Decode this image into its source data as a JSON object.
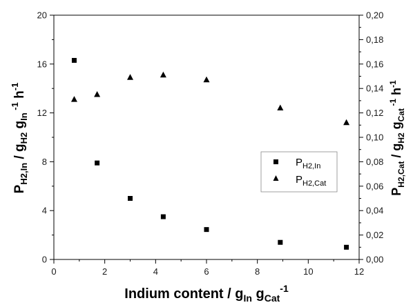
{
  "chart_data": {
    "type": "scatter",
    "xlabel": {
      "main": "Indium content / g",
      "sub1": "In",
      "mid": " g",
      "sub2": "Cat",
      "sup": "-1"
    },
    "ylabel_left": {
      "p": "P",
      "psub": "H2,In",
      "mid": " / g",
      "sub1": "H2",
      "g2": " g",
      "sub2": "In",
      "sup1": " -1",
      "h": " h",
      "sup2": "-1"
    },
    "ylabel_right": {
      "p": "P",
      "psub": "H2,Cat",
      "mid": " / g",
      "sub1": "H2",
      "g2": " g",
      "sub2": "Cat",
      "sup1": " -1",
      "h": " h",
      "sup2": "-1"
    },
    "xlim": [
      0,
      12
    ],
    "ylim_left": [
      0,
      20
    ],
    "ylim_right": [
      0,
      0.2
    ],
    "x_ticks": [
      "0",
      "2",
      "4",
      "6",
      "8",
      "10",
      "12"
    ],
    "y_left_ticks": [
      "0",
      "4",
      "8",
      "12",
      "16",
      "20"
    ],
    "y_right_ticks": [
      "0,00",
      "0,02",
      "0,04",
      "0,06",
      "0,08",
      "0,10",
      "0,12",
      "0,14",
      "0,16",
      "0,18",
      "0,20"
    ],
    "legend_position": "center-right",
    "series": [
      {
        "name": "P",
        "name_sub": "H2,In",
        "marker": "square",
        "axis": "left",
        "x": [
          0.8,
          1.7,
          3.0,
          4.3,
          6.0,
          8.9,
          11.5
        ],
        "y": [
          16.3,
          7.9,
          5.0,
          3.5,
          2.45,
          1.4,
          1.0
        ]
      },
      {
        "name": "P",
        "name_sub": "H2,Cat",
        "marker": "triangle",
        "axis": "right",
        "x": [
          0.8,
          1.7,
          3.0,
          4.3,
          6.0,
          8.9,
          11.5
        ],
        "y": [
          0.131,
          0.135,
          0.149,
          0.151,
          0.147,
          0.124,
          0.112
        ]
      }
    ],
    "grid": false
  }
}
